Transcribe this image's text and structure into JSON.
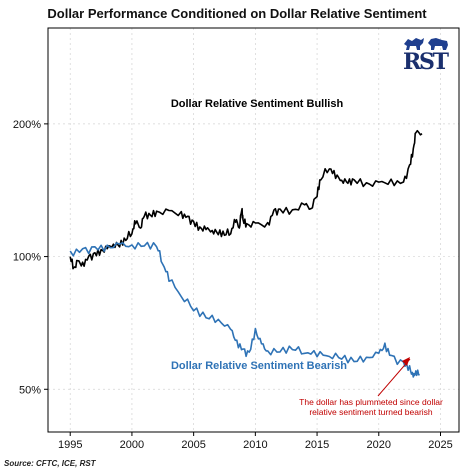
{
  "chart_data": {
    "type": "line",
    "title": "Dollar Performance Conditioned on Dollar Relative Sentiment",
    "source": "Source: CFTC, ICE, RST",
    "y_scale": "log",
    "xlim": [
      1993.2,
      2026.5
    ],
    "ylim": [
      40,
      330
    ],
    "x_ticks": [
      1995,
      2000,
      2005,
      2010,
      2015,
      2020,
      2025
    ],
    "y_ticks": [
      {
        "value": 50,
        "label": "50%"
      },
      {
        "value": 100,
        "label": "100%"
      },
      {
        "value": 200,
        "label": "200%"
      }
    ],
    "grid": true,
    "series": [
      {
        "name": "Dollar Relative Sentiment Bullish",
        "color": "#000000",
        "x": [
          1995.0,
          1995.3,
          1995.6,
          1996.0,
          1996.5,
          1997.0,
          1997.5,
          1998.0,
          1998.5,
          1999.0,
          1999.5,
          2000.0,
          2000.3,
          2000.7,
          2001.0,
          2001.5,
          2002.0,
          2003.0,
          2004.0,
          2004.5,
          2005.0,
          2005.5,
          2006.0,
          2006.5,
          2007.0,
          2007.5,
          2008.0,
          2008.4,
          2008.7,
          2008.9,
          2009.0,
          2009.3,
          2010.0,
          2011.0,
          2011.5,
          2012.0,
          2013.0,
          2014.0,
          2014.5,
          2015.0,
          2015.3,
          2016.0,
          2016.5,
          2017.0,
          2017.5,
          2018.0,
          2019.0,
          2020.0,
          2021.0,
          2022.0,
          2022.5,
          2022.8,
          2023.0,
          2023.5
        ],
        "values": [
          100,
          94,
          97,
          96,
          99,
          101,
          103,
          104,
          107,
          106,
          110,
          114,
          120,
          117,
          124,
          124,
          126,
          126,
          125,
          122,
          119,
          116,
          115,
          115,
          113,
          113,
          114,
          121,
          117,
          128,
          121,
          118,
          118,
          118,
          126,
          127,
          127,
          131,
          129,
          138,
          151,
          160,
          152,
          150,
          147,
          149,
          146,
          146,
          148,
          146,
          160,
          175,
          191,
          191
        ]
      },
      {
        "name": "Dollar Relative Sentiment Bearish",
        "color": "#2f73b6",
        "x": [
          1995.0,
          1996.0,
          1997.0,
          1998.0,
          1999.0,
          2000.0,
          2001.0,
          2002.0,
          2002.5,
          2003.0,
          2004.0,
          2005.0,
          2006.0,
          2007.0,
          2008.0,
          2008.5,
          2009.0,
          2009.5,
          2010.0,
          2010.5,
          2011.0,
          2012.0,
          2013.0,
          2014.0,
          2015.0,
          2016.0,
          2017.0,
          2018.0,
          2019.0,
          2020.0,
          2020.5,
          2021.0,
          2022.0,
          2022.5,
          2022.8,
          2023.0,
          2023.3
        ],
        "values": [
          102,
          103,
          104,
          105,
          106,
          106,
          106,
          106,
          97,
          89,
          82,
          76,
          73,
          72,
          68,
          64,
          61,
          60,
          68,
          63,
          61,
          61,
          62,
          61,
          60,
          60,
          59,
          58,
          59,
          60,
          63,
          59,
          57,
          56,
          53,
          55,
          54
        ]
      }
    ],
    "annotations": {
      "bullish_label": "Dollar Relative Sentiment Bullish",
      "bearish_label": "Dollar Relative Sentiment Bearish",
      "note_line1": "The dollar has plummeted since dollar",
      "note_line2": "relative sentiment turned bearish"
    },
    "colors": {
      "bullish": "#000000",
      "bearish": "#2f73b6",
      "note": "#c00000",
      "grid": "#d3d3d3"
    },
    "logo": "RST"
  }
}
